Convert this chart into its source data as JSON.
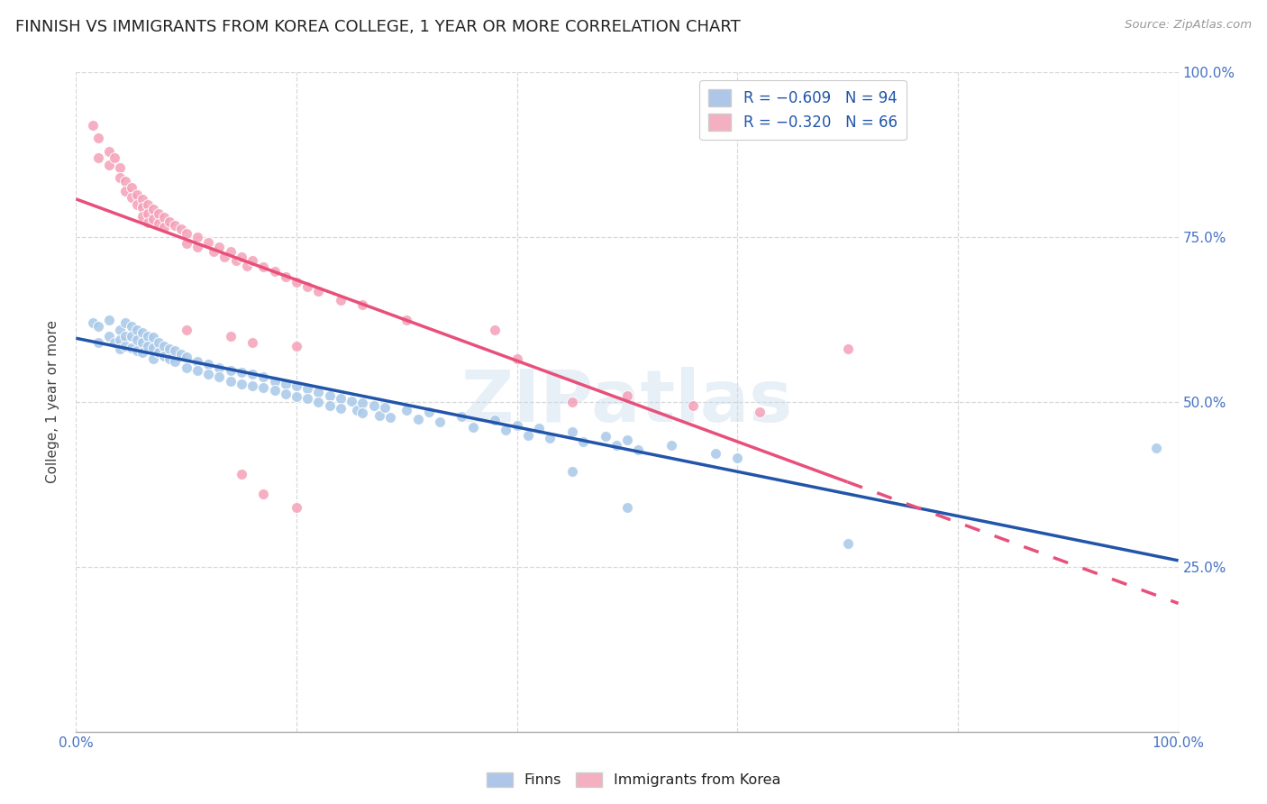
{
  "title": "FINNISH VS IMMIGRANTS FROM KOREA COLLEGE, 1 YEAR OR MORE CORRELATION CHART",
  "source": "Source: ZipAtlas.com",
  "ylabel": "College, 1 year or more",
  "xlim": [
    0.0,
    1.0
  ],
  "ylim": [
    0.0,
    1.0
  ],
  "x_tick_labels": [
    "0.0%",
    "",
    "",
    "",
    "",
    "100.0%"
  ],
  "y_tick_labels_right": [
    "25.0%",
    "50.0%",
    "75.0%",
    "100.0%"
  ],
  "finns_color": "#a8c8e8",
  "korea_color": "#f4a0b8",
  "finns_line_color": "#2255aa",
  "korea_line_color": "#e8507a",
  "watermark": "ZIPatlas",
  "background_color": "#ffffff",
  "grid_color": "#d8d8d8",
  "title_fontsize": 13,
  "axis_label_fontsize": 11,
  "tick_fontsize": 11,
  "finns_scatter": [
    [
      0.015,
      0.62
    ],
    [
      0.02,
      0.615
    ],
    [
      0.02,
      0.59
    ],
    [
      0.03,
      0.625
    ],
    [
      0.03,
      0.6
    ],
    [
      0.035,
      0.59
    ],
    [
      0.04,
      0.61
    ],
    [
      0.04,
      0.595
    ],
    [
      0.04,
      0.58
    ],
    [
      0.045,
      0.62
    ],
    [
      0.045,
      0.6
    ],
    [
      0.045,
      0.585
    ],
    [
      0.05,
      0.615
    ],
    [
      0.05,
      0.6
    ],
    [
      0.05,
      0.582
    ],
    [
      0.055,
      0.61
    ],
    [
      0.055,
      0.595
    ],
    [
      0.055,
      0.578
    ],
    [
      0.06,
      0.605
    ],
    [
      0.06,
      0.59
    ],
    [
      0.06,
      0.575
    ],
    [
      0.065,
      0.6
    ],
    [
      0.065,
      0.585
    ],
    [
      0.07,
      0.598
    ],
    [
      0.07,
      0.582
    ],
    [
      0.07,
      0.565
    ],
    [
      0.075,
      0.59
    ],
    [
      0.075,
      0.575
    ],
    [
      0.08,
      0.585
    ],
    [
      0.08,
      0.57
    ],
    [
      0.085,
      0.58
    ],
    [
      0.085,
      0.565
    ],
    [
      0.09,
      0.578
    ],
    [
      0.09,
      0.562
    ],
    [
      0.095,
      0.572
    ],
    [
      0.1,
      0.568
    ],
    [
      0.1,
      0.552
    ],
    [
      0.11,
      0.562
    ],
    [
      0.11,
      0.548
    ],
    [
      0.12,
      0.558
    ],
    [
      0.12,
      0.542
    ],
    [
      0.13,
      0.552
    ],
    [
      0.13,
      0.538
    ],
    [
      0.14,
      0.548
    ],
    [
      0.14,
      0.532
    ],
    [
      0.15,
      0.545
    ],
    [
      0.15,
      0.528
    ],
    [
      0.16,
      0.542
    ],
    [
      0.16,
      0.525
    ],
    [
      0.17,
      0.538
    ],
    [
      0.17,
      0.522
    ],
    [
      0.18,
      0.532
    ],
    [
      0.18,
      0.518
    ],
    [
      0.19,
      0.528
    ],
    [
      0.19,
      0.512
    ],
    [
      0.2,
      0.525
    ],
    [
      0.2,
      0.508
    ],
    [
      0.21,
      0.52
    ],
    [
      0.21,
      0.505
    ],
    [
      0.22,
      0.515
    ],
    [
      0.22,
      0.5
    ],
    [
      0.23,
      0.51
    ],
    [
      0.23,
      0.495
    ],
    [
      0.24,
      0.505
    ],
    [
      0.24,
      0.49
    ],
    [
      0.25,
      0.502
    ],
    [
      0.255,
      0.488
    ],
    [
      0.26,
      0.498
    ],
    [
      0.26,
      0.483
    ],
    [
      0.27,
      0.495
    ],
    [
      0.275,
      0.48
    ],
    [
      0.28,
      0.492
    ],
    [
      0.285,
      0.477
    ],
    [
      0.3,
      0.488
    ],
    [
      0.31,
      0.474
    ],
    [
      0.32,
      0.485
    ],
    [
      0.33,
      0.47
    ],
    [
      0.35,
      0.478
    ],
    [
      0.36,
      0.462
    ],
    [
      0.38,
      0.472
    ],
    [
      0.39,
      0.458
    ],
    [
      0.4,
      0.465
    ],
    [
      0.41,
      0.45
    ],
    [
      0.42,
      0.46
    ],
    [
      0.43,
      0.445
    ],
    [
      0.45,
      0.455
    ],
    [
      0.46,
      0.44
    ],
    [
      0.48,
      0.448
    ],
    [
      0.49,
      0.435
    ],
    [
      0.5,
      0.442
    ],
    [
      0.51,
      0.428
    ],
    [
      0.54,
      0.435
    ],
    [
      0.58,
      0.422
    ],
    [
      0.6,
      0.415
    ],
    [
      0.45,
      0.395
    ],
    [
      0.5,
      0.34
    ],
    [
      0.7,
      0.285
    ],
    [
      0.98,
      0.43
    ]
  ],
  "korea_scatter": [
    [
      0.015,
      0.92
    ],
    [
      0.02,
      0.9
    ],
    [
      0.02,
      0.87
    ],
    [
      0.03,
      0.88
    ],
    [
      0.03,
      0.86
    ],
    [
      0.035,
      0.87
    ],
    [
      0.04,
      0.855
    ],
    [
      0.04,
      0.84
    ],
    [
      0.045,
      0.835
    ],
    [
      0.045,
      0.82
    ],
    [
      0.05,
      0.825
    ],
    [
      0.05,
      0.81
    ],
    [
      0.055,
      0.815
    ],
    [
      0.055,
      0.8
    ],
    [
      0.06,
      0.808
    ],
    [
      0.06,
      0.795
    ],
    [
      0.06,
      0.782
    ],
    [
      0.065,
      0.8
    ],
    [
      0.065,
      0.786
    ],
    [
      0.065,
      0.772
    ],
    [
      0.07,
      0.793
    ],
    [
      0.07,
      0.778
    ],
    [
      0.075,
      0.786
    ],
    [
      0.075,
      0.771
    ],
    [
      0.08,
      0.78
    ],
    [
      0.08,
      0.765
    ],
    [
      0.085,
      0.774
    ],
    [
      0.09,
      0.768
    ],
    [
      0.095,
      0.762
    ],
    [
      0.1,
      0.755
    ],
    [
      0.1,
      0.74
    ],
    [
      0.11,
      0.75
    ],
    [
      0.11,
      0.735
    ],
    [
      0.12,
      0.742
    ],
    [
      0.125,
      0.728
    ],
    [
      0.13,
      0.735
    ],
    [
      0.135,
      0.72
    ],
    [
      0.14,
      0.728
    ],
    [
      0.145,
      0.714
    ],
    [
      0.15,
      0.72
    ],
    [
      0.155,
      0.706
    ],
    [
      0.16,
      0.715
    ],
    [
      0.17,
      0.705
    ],
    [
      0.18,
      0.698
    ],
    [
      0.19,
      0.69
    ],
    [
      0.2,
      0.682
    ],
    [
      0.21,
      0.675
    ],
    [
      0.22,
      0.668
    ],
    [
      0.24,
      0.655
    ],
    [
      0.26,
      0.648
    ],
    [
      0.3,
      0.625
    ],
    [
      0.1,
      0.61
    ],
    [
      0.14,
      0.6
    ],
    [
      0.16,
      0.59
    ],
    [
      0.2,
      0.585
    ],
    [
      0.38,
      0.61
    ],
    [
      0.4,
      0.565
    ],
    [
      0.15,
      0.39
    ],
    [
      0.17,
      0.36
    ],
    [
      0.2,
      0.34
    ],
    [
      0.45,
      0.5
    ],
    [
      0.5,
      0.51
    ],
    [
      0.56,
      0.495
    ],
    [
      0.62,
      0.485
    ],
    [
      0.7,
      0.58
    ]
  ],
  "finns_line": {
    "x0": 0.0,
    "x1": 1.0,
    "y0": 0.617,
    "y1": 0.29
  },
  "korea_line_solid": {
    "x0": 0.0,
    "x1": 0.7,
    "y0": 0.76,
    "y1": 0.445
  },
  "korea_line_dash": {
    "x0": 0.7,
    "x1": 1.0,
    "y0": 0.445,
    "y1": 0.31
  }
}
